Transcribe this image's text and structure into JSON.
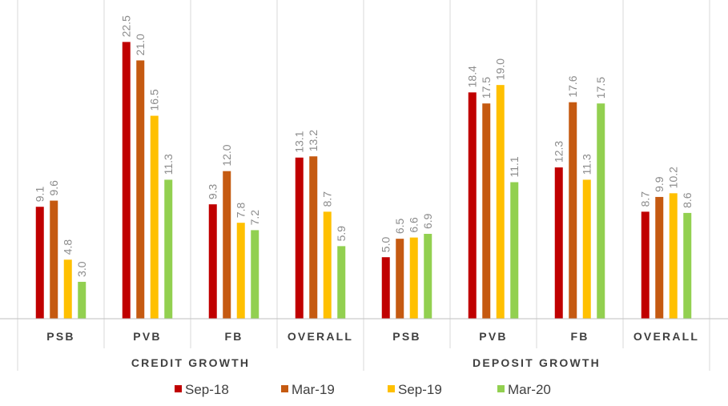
{
  "chart_data": {
    "type": "bar",
    "title": "",
    "xlabel": "",
    "ylabel": "",
    "ylim": [
      0,
      25
    ],
    "grid": false,
    "legend_position": "bottom",
    "groups": [
      {
        "label": "CREDIT GROWTH",
        "categories": [
          "PSB",
          "PVB",
          "FB",
          "OVERALL"
        ]
      },
      {
        "label": "DEPOSIT GROWTH",
        "categories": [
          "PSB",
          "PVB",
          "FB",
          "OVERALL"
        ]
      }
    ],
    "categories": [
      "PSB",
      "PVB",
      "FB",
      "OVERALL",
      "PSB",
      "PVB",
      "FB",
      "OVERALL"
    ],
    "series": [
      {
        "name": "Sep-18",
        "color": "#c00000",
        "values": [
          9.1,
          22.5,
          9.3,
          13.1,
          5.0,
          18.4,
          12.3,
          8.7
        ]
      },
      {
        "name": "Mar-19",
        "color": "#c55a11",
        "values": [
          9.6,
          21.0,
          12.0,
          13.2,
          6.5,
          17.5,
          17.6,
          9.9
        ]
      },
      {
        "name": "Sep-19",
        "color": "#ffc000",
        "values": [
          4.8,
          16.5,
          7.8,
          8.7,
          6.6,
          19.0,
          11.3,
          10.2
        ]
      },
      {
        "name": "Mar-20",
        "color": "#92d050",
        "values": [
          3.0,
          11.3,
          7.2,
          5.9,
          6.9,
          11.1,
          17.5,
          8.6
        ]
      }
    ]
  }
}
